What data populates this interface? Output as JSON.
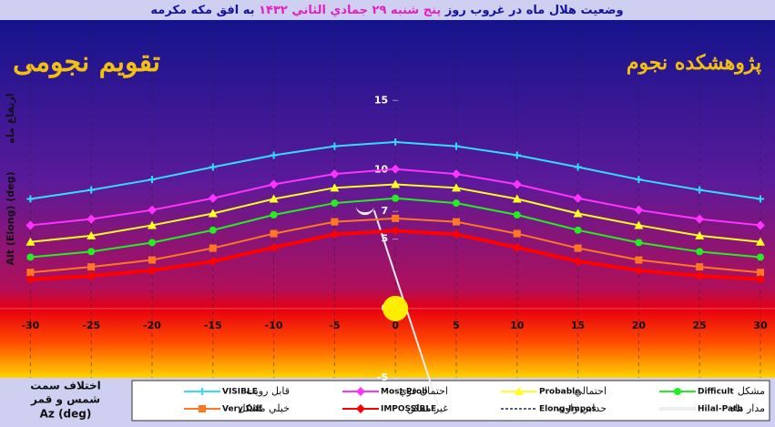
{
  "chart_data": {
    "type": "line",
    "title_parts": [
      "وضعیت هلال ماه در غروب روز",
      "پنج شنبه ۲۹ جمادي الثاني ۱۴۳۲",
      "به افق مکه مکرمه"
    ],
    "logo_left": "تقویم نجومی",
    "logo_right": "پژوهشکده نجوم",
    "y_label": "Alt (Elong) (deg)",
    "y_label_fa": "ارتفاع ماه",
    "x_label_fa": [
      "اختلاف سمت",
      "شمس و قمر"
    ],
    "x_label": "Az (deg)",
    "x": [
      -30,
      -25,
      -20,
      -15,
      -10,
      -5,
      0,
      5,
      10,
      15,
      20,
      25,
      30
    ],
    "xlim": [
      -32.5,
      31.2
    ],
    "xticks": [
      -30,
      -25,
      -20,
      -15,
      -10,
      -5,
      0,
      5,
      10,
      15,
      20,
      25,
      30
    ],
    "ylim": [
      -5,
      20.8
    ],
    "yticks": [
      -5,
      0,
      5,
      7,
      10,
      15
    ],
    "grid": true,
    "series": [
      {
        "name": "VISIBLE",
        "label_fa": "قابل رويت",
        "color": "#33ddff",
        "marker": "cross",
        "values": [
          7.9,
          8.55,
          9.3,
          10.2,
          11.05,
          11.7,
          12.0,
          11.7,
          11.05,
          10.2,
          9.3,
          8.55,
          7.9
        ]
      },
      {
        "name": "Most Prob",
        "label_fa": "احتمال قوي",
        "color": "#ff33ff",
        "marker": "diamond",
        "values": [
          6.0,
          6.45,
          7.1,
          7.95,
          8.95,
          9.7,
          10.05,
          9.7,
          8.95,
          7.95,
          7.1,
          6.45,
          6.0
        ]
      },
      {
        "name": "Probable",
        "label_fa": "احتمالي",
        "color": "#ffff22",
        "marker": "triangle",
        "values": [
          4.8,
          5.25,
          6.0,
          6.85,
          7.9,
          8.7,
          8.95,
          8.7,
          7.9,
          6.85,
          6.0,
          5.25,
          4.8
        ]
      },
      {
        "name": "Difficult",
        "label_fa": "مشکل",
        "color": "#22ee22",
        "marker": "circle",
        "values": [
          3.7,
          4.1,
          4.75,
          5.65,
          6.75,
          7.6,
          7.95,
          7.6,
          6.75,
          5.65,
          4.75,
          4.1,
          3.7
        ]
      },
      {
        "name": "Very Diff",
        "label_fa": "خيلي مشکل",
        "color": "#ff7722",
        "marker": "square",
        "values": [
          2.6,
          3.0,
          3.5,
          4.35,
          5.4,
          6.25,
          6.5,
          6.25,
          5.4,
          4.35,
          3.5,
          3.0,
          2.6
        ]
      },
      {
        "name": "IMPOSSIBLE",
        "label_fa": "غير ممکن",
        "color": "#ff0000",
        "marker": "diamond",
        "values": [
          2.1,
          2.35,
          2.75,
          3.4,
          4.4,
          5.35,
          5.6,
          5.35,
          4.4,
          3.4,
          2.75,
          2.35,
          2.1
        ]
      }
    ],
    "legend_extra": [
      {
        "name": "Elong-Impos",
        "label_fa": "حدابي زاويه",
        "color": "#1a2a5a"
      },
      {
        "name": "Hilal-Path",
        "label_fa": "مدار ماه",
        "color": "#eeeeee"
      }
    ],
    "moon": {
      "x": -2.5,
      "y": 7.4
    },
    "sun": {
      "x": 0,
      "y": 0
    }
  }
}
